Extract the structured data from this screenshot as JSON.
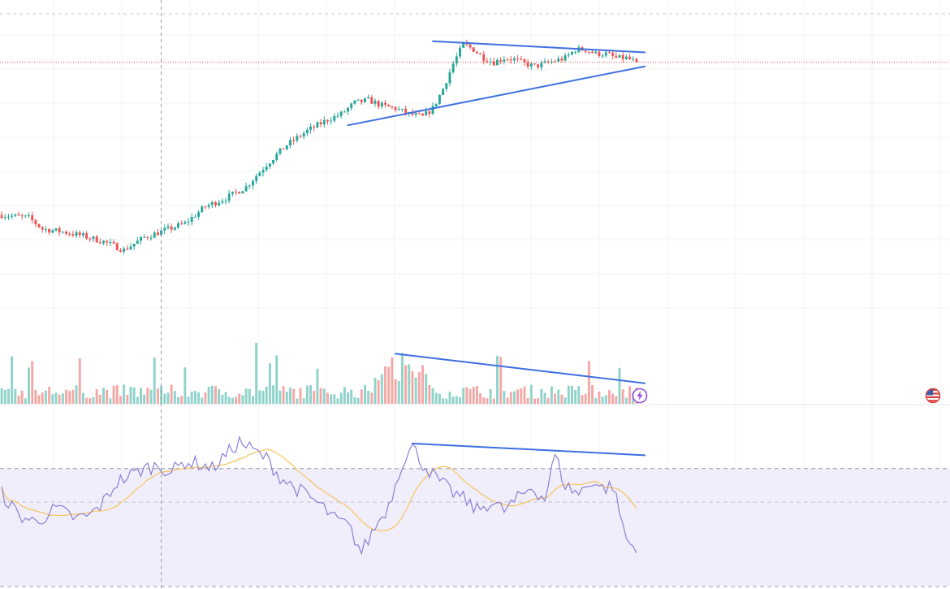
{
  "chart_data": {
    "type": "candlestick",
    "title": "",
    "grid": true,
    "colors": {
      "up": "#26a69a",
      "down": "#ef5350",
      "up_volume": "#8fd3cb",
      "down_volume": "#f4a8a6",
      "trendline": "#3d6fe0",
      "rsi_line": "#8b7fd6",
      "rsi_ma": "#f5c45a",
      "rsi_band": "#f1eefb"
    },
    "price": {
      "y_range": [
        0,
        100
      ],
      "anchors": [
        [
          0,
          32
        ],
        [
          8,
          31
        ],
        [
          12,
          27
        ],
        [
          18,
          26
        ],
        [
          24,
          24.5
        ],
        [
          30,
          22.5
        ],
        [
          36,
          19.5
        ],
        [
          42,
          24
        ],
        [
          48,
          26.5
        ],
        [
          54,
          29
        ],
        [
          60,
          35
        ],
        [
          66,
          38
        ],
        [
          72,
          42
        ],
        [
          78,
          50
        ],
        [
          84,
          57
        ],
        [
          90,
          62
        ],
        [
          96,
          66
        ],
        [
          100,
          68
        ],
        [
          104,
          72
        ],
        [
          108,
          73
        ],
        [
          112,
          71
        ],
        [
          116,
          70
        ],
        [
          120,
          68
        ],
        [
          124,
          67
        ],
        [
          127,
          70
        ],
        [
          130,
          77
        ],
        [
          133,
          86
        ],
        [
          136,
          93
        ],
        [
          139,
          91
        ],
        [
          142,
          88
        ],
        [
          145,
          86.5
        ],
        [
          148,
          88
        ],
        [
          151,
          87.5
        ],
        [
          154,
          86
        ],
        [
          157,
          85
        ],
        [
          160,
          86
        ],
        [
          163,
          87
        ],
        [
          166,
          88
        ],
        [
          169,
          91
        ],
        [
          172,
          91
        ],
        [
          175,
          89.5
        ],
        [
          178,
          89.5
        ],
        [
          181,
          88
        ],
        [
          184,
          88
        ],
        [
          186,
          87
        ],
        [
          188,
          84
        ]
      ],
      "noise_amplitude": 1.1
    },
    "volume": {
      "y_range": [
        0,
        100
      ],
      "length": 188
    },
    "rsi": {
      "y_range": [
        0,
        100
      ],
      "upper_band": 70,
      "lower_band": 30,
      "midline": 50,
      "anchors": [
        [
          0,
          55
        ],
        [
          5,
          42
        ],
        [
          10,
          38
        ],
        [
          16,
          46
        ],
        [
          22,
          40
        ],
        [
          26,
          42
        ],
        [
          30,
          50
        ],
        [
          34,
          62
        ],
        [
          38,
          66
        ],
        [
          42,
          70
        ],
        [
          46,
          72
        ],
        [
          50,
          68
        ],
        [
          54,
          74
        ],
        [
          58,
          73
        ],
        [
          62,
          70
        ],
        [
          66,
          78
        ],
        [
          70,
          86
        ],
        [
          74,
          81
        ],
        [
          78,
          76
        ],
        [
          82,
          65
        ],
        [
          86,
          59
        ],
        [
          90,
          54
        ],
        [
          94,
          48
        ],
        [
          98,
          40
        ],
        [
          102,
          36
        ],
        [
          106,
          20
        ],
        [
          110,
          35
        ],
        [
          114,
          48
        ],
        [
          118,
          74
        ],
        [
          121,
          83
        ],
        [
          124,
          73
        ],
        [
          128,
          64
        ],
        [
          132,
          57
        ],
        [
          136,
          52
        ],
        [
          140,
          45
        ],
        [
          144,
          50
        ],
        [
          148,
          45
        ],
        [
          152,
          52
        ],
        [
          156,
          59
        ],
        [
          160,
          52
        ],
        [
          163,
          78
        ],
        [
          166,
          60
        ],
        [
          170,
          55
        ],
        [
          174,
          63
        ],
        [
          177,
          58
        ],
        [
          180,
          60
        ],
        [
          182,
          44
        ],
        [
          184,
          28
        ],
        [
          186,
          23
        ],
        [
          188,
          25
        ]
      ],
      "noise_amplitude": 4.5
    },
    "annotations": [
      {
        "type": "trendline",
        "pane": "price",
        "from": [
          127,
          94
        ],
        "to": [
          188,
          90
        ],
        "label": ""
      },
      {
        "type": "trendline",
        "pane": "price",
        "from": [
          102,
          64
        ],
        "to": [
          188,
          85
        ],
        "label": ""
      },
      {
        "type": "trendline",
        "pane": "volume",
        "from": [
          116,
          78
        ],
        "to": [
          188,
          32
        ],
        "label": ""
      },
      {
        "type": "trendline",
        "pane": "rsi",
        "from": [
          121,
          85
        ],
        "to": [
          188,
          78
        ],
        "label": ""
      }
    ],
    "crosshair_bar": 47,
    "current_price_marker": true
  },
  "icons": {
    "lightning": "lightning-icon",
    "flag": "us-flag-icon"
  }
}
